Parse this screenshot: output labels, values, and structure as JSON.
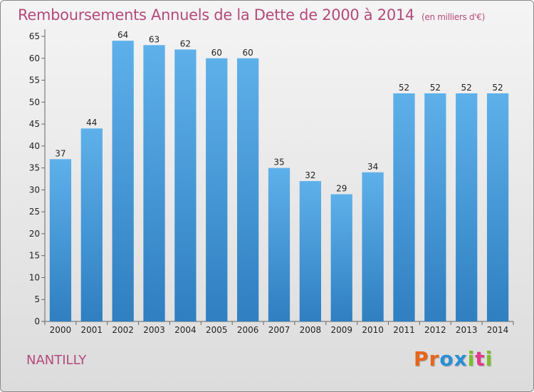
{
  "header": {
    "title": "Remboursements Annuels de la Dette de 2000 à 2014",
    "subtitle": "(en milliers d'€)"
  },
  "footer": {
    "city": "NANTILLY",
    "logo_text": "Proxiti",
    "logo_colors": [
      "#e8641b",
      "#e8641b",
      "#2a8fd6",
      "#2a8fd6",
      "#7bbf2e",
      "#e03a8c",
      "#7bbf2e"
    ]
  },
  "colors": {
    "bar_top": "#5eb0ea",
    "bar_bottom": "#2f7fc1",
    "title": "#b54a7c"
  },
  "chart_data": {
    "type": "bar",
    "title": "Remboursements Annuels de la Dette de 2000 à 2014",
    "subtitle": "(en milliers d'€)",
    "categories": [
      "2000",
      "2001",
      "2002",
      "2003",
      "2004",
      "2005",
      "2006",
      "2007",
      "2008",
      "2009",
      "2010",
      "2011",
      "2012",
      "2013",
      "2014"
    ],
    "values": [
      37,
      44,
      64,
      63,
      62,
      60,
      60,
      35,
      32,
      29,
      34,
      52,
      52,
      52,
      52
    ],
    "ylim": [
      0,
      65
    ],
    "yticks": [
      0,
      5,
      10,
      15,
      20,
      25,
      30,
      35,
      40,
      45,
      50,
      55,
      60,
      65
    ],
    "grid": false,
    "data_labels": true
  }
}
